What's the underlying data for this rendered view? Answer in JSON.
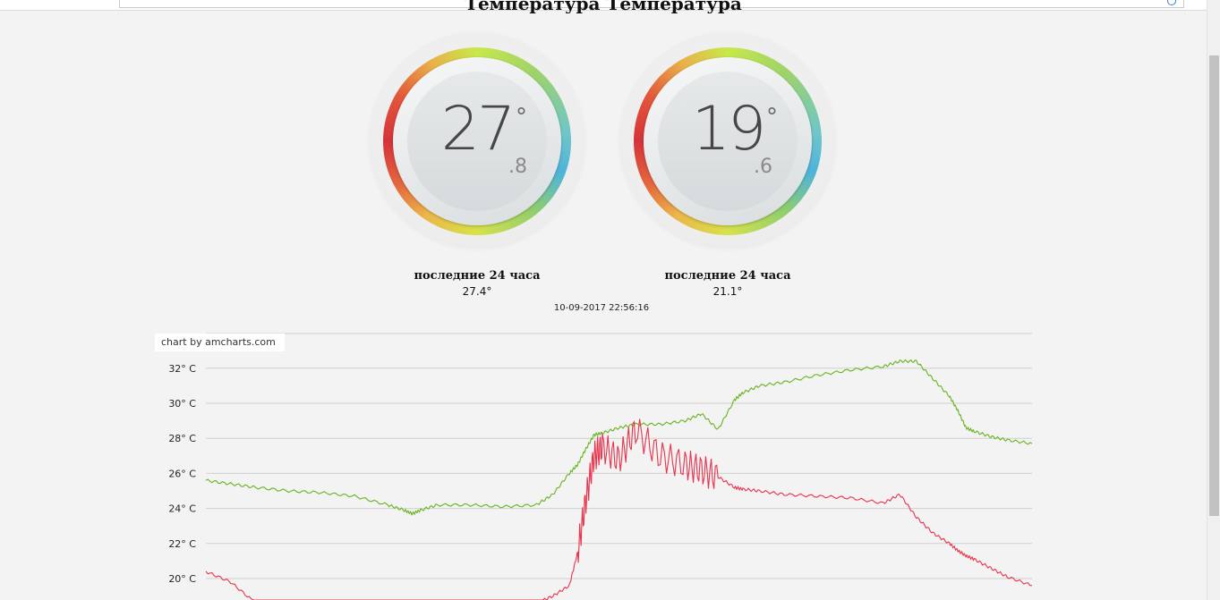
{
  "page": {
    "heading": "Температура                    Температура"
  },
  "gauges": [
    {
      "integer": "27",
      "decimal": ".8",
      "degree": "°",
      "last24_label": "последние 24 часа",
      "last24_value": "27.4°"
    },
    {
      "integer": "19",
      "decimal": ".6",
      "degree": "°",
      "last24_label": "последние 24 часа",
      "last24_value": "21.1°"
    }
  ],
  "timestamp": "10-09-2017 22:56:16",
  "chart_credit": "chart by amcharts.com",
  "colors": {
    "series_outdoor": "#66b41f",
    "series_indoor": "#e8334d",
    "grid": "#cfcfcf"
  },
  "chart_data": {
    "type": "line",
    "ylabel_unit": "° C",
    "yticks": [
      "20° C",
      "22° C",
      "24° C",
      "26° C",
      "28° C",
      "30° C",
      "32° C"
    ],
    "ytick_values": [
      20,
      22,
      24,
      26,
      28,
      30,
      32
    ],
    "ylim": [
      18.5,
      34
    ],
    "x": [
      0,
      0.03,
      0.06,
      0.1,
      0.14,
      0.18,
      0.22,
      0.24,
      0.25,
      0.26,
      0.28,
      0.32,
      0.36,
      0.4,
      0.42,
      0.44,
      0.45,
      0.46,
      0.47,
      0.48,
      0.5,
      0.52,
      0.55,
      0.58,
      0.6,
      0.62,
      0.64,
      0.65,
      0.67,
      0.7,
      0.74,
      0.78,
      0.82,
      0.84,
      0.86,
      0.88,
      0.9,
      0.91,
      0.92,
      0.93,
      0.95,
      0.97,
      1.0
    ],
    "series": [
      {
        "values": [
          25.6,
          25.4,
          25.2,
          25.0,
          24.9,
          24.7,
          24.2,
          23.9,
          23.7,
          23.9,
          24.2,
          24.2,
          24.1,
          24.2,
          24.8,
          26.0,
          26.5,
          27.4,
          28.2,
          28.3,
          28.6,
          28.8,
          28.8,
          29.0,
          29.4,
          28.5,
          30.2,
          30.6,
          31.0,
          31.2,
          31.6,
          31.9,
          32.1,
          32.4,
          32.4,
          31.4,
          30.4,
          29.6,
          28.6,
          28.4,
          28.1,
          27.9,
          27.7
        ]
      },
      {
        "values": [
          20.4,
          19.8,
          18.6,
          18.0,
          17.9,
          17.8,
          17.9,
          18.0,
          18.0,
          18.1,
          18.2,
          18.2,
          18.3,
          18.6,
          19.0,
          19.6,
          21.5,
          24.5,
          27.0,
          27.5,
          26.8,
          28.5,
          27.0,
          26.5,
          26.2,
          25.8,
          25.2,
          25.1,
          25.0,
          24.8,
          24.7,
          24.6,
          24.3,
          24.8,
          23.5,
          22.6,
          22.0,
          21.6,
          21.3,
          21.1,
          20.6,
          20.1,
          19.6
        ]
      }
    ]
  }
}
